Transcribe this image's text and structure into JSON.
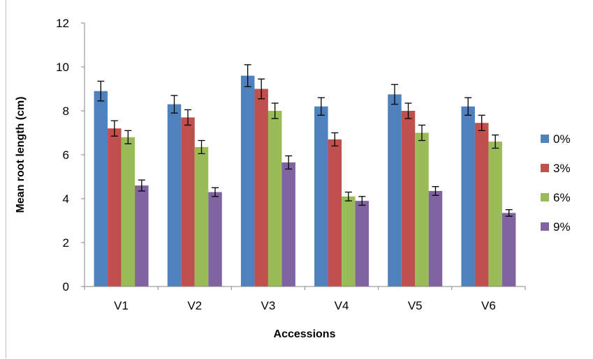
{
  "chart_data": {
    "type": "bar",
    "title": "",
    "xlabel": "Accessions",
    "ylabel": "Mean root length (cm)",
    "ylim": [
      0,
      12
    ],
    "yticks": [
      0,
      2,
      4,
      6,
      8,
      10,
      12
    ],
    "grid": false,
    "legend_position": "right",
    "error_bars": true,
    "categories": [
      "V1",
      "V2",
      "V3",
      "V4",
      "V5",
      "V6"
    ],
    "series": [
      {
        "name": "0%",
        "color": "#4f81bd",
        "values": [
          8.9,
          8.3,
          9.6,
          8.2,
          8.75,
          8.2
        ],
        "errors": [
          0.45,
          0.4,
          0.5,
          0.4,
          0.45,
          0.4
        ]
      },
      {
        "name": "3%",
        "color": "#c0504d",
        "values": [
          7.2,
          7.7,
          9.0,
          6.7,
          8.0,
          7.45
        ],
        "errors": [
          0.35,
          0.35,
          0.45,
          0.3,
          0.35,
          0.35
        ]
      },
      {
        "name": "6%",
        "color": "#9bbb59",
        "values": [
          6.8,
          6.35,
          8.0,
          4.1,
          7.0,
          6.6
        ],
        "errors": [
          0.3,
          0.3,
          0.35,
          0.2,
          0.35,
          0.3
        ]
      },
      {
        "name": "9%",
        "color": "#8064a2",
        "values": [
          4.6,
          4.3,
          5.65,
          3.9,
          4.35,
          3.35
        ],
        "errors": [
          0.25,
          0.2,
          0.3,
          0.2,
          0.2,
          0.15
        ]
      }
    ]
  }
}
